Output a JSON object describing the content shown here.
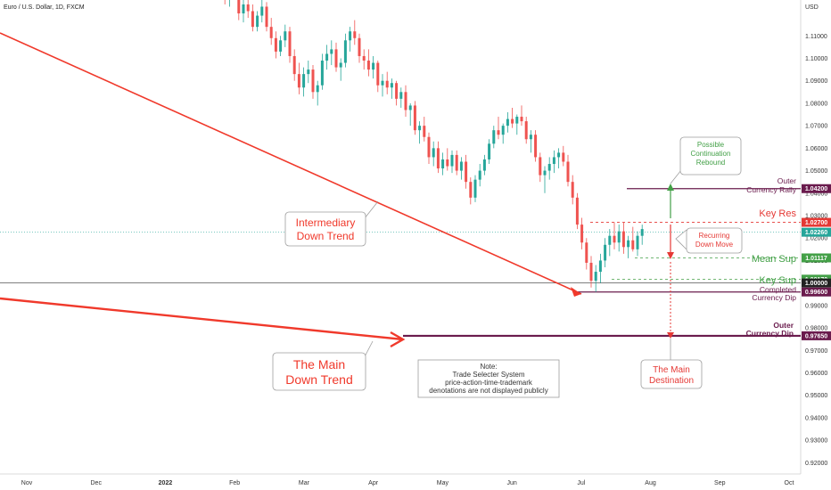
{
  "header": {
    "symbol": "Euro / U.S. Dollar, 1D, FXCM",
    "currency": "USD"
  },
  "chart_data": {
    "type": "candlestick",
    "ylim": [
      0.915,
      1.122
    ],
    "y_ticks": [
      "1.11000",
      "1.10000",
      "1.09000",
      "1.08000",
      "1.07000",
      "1.06000",
      "1.05000",
      "1.04000",
      "1.03000",
      "1.02000",
      "1.01000",
      "1.00000",
      "0.99000",
      "0.98000",
      "0.97000",
      "0.96000",
      "0.95000",
      "0.94000",
      "0.93000",
      "0.92000"
    ],
    "x_labels": [
      "Nov",
      "Dec",
      "2022",
      "Feb",
      "Mar",
      "Apr",
      "May",
      "Jun",
      "Jul",
      "Aug",
      "Sep",
      "Oct"
    ],
    "price_labels": [
      {
        "text": "1.04200",
        "value": 1.042,
        "color": "#6a1b4d"
      },
      {
        "text": "1.02700",
        "value": 1.027,
        "color": "#e53935"
      },
      {
        "text": "1.02260",
        "value": 1.0226,
        "color": "#26a69a"
      },
      {
        "text": "1.01117",
        "value": 1.01117,
        "color": "#43a047"
      },
      {
        "text": "1.00170",
        "value": 1.0017,
        "color": "#43a047"
      },
      {
        "text": "1.00000",
        "value": 1.0,
        "color": "#222222"
      },
      {
        "text": "0.99600",
        "value": 0.996,
        "color": "#6a1b4d"
      },
      {
        "text": "0.97650",
        "value": 0.9765,
        "color": "#6a1b4d"
      }
    ],
    "levels": {
      "outer_rally": {
        "line1": "Outer",
        "line2": "Currency Rally",
        "value": 1.042
      },
      "key_res": {
        "text": "Key Res",
        "value": 1.027
      },
      "mean_sup": {
        "text": "Mean Sup",
        "value": 1.01117
      },
      "key_sup": {
        "text": "Key Sup",
        "value": 1.0017
      },
      "completed": {
        "line1": "Completed",
        "line2": "Currency Dip",
        "value": 0.996
      },
      "outer_dip": {
        "line1": "Outer",
        "line2": "Currency Dip",
        "value": 0.9765
      }
    },
    "callouts": {
      "continuation": [
        "Possible",
        "Continuation",
        "Rebound"
      ],
      "recurring": [
        "Recurring",
        "Down Move"
      ],
      "intermediary": [
        "Intermediary",
        "Down Trend"
      ],
      "main_trend": [
        "The Main",
        "Down Trend"
      ],
      "destination": [
        "The Main",
        "Destination"
      ],
      "note": [
        "Note:",
        "Trade Selecter System",
        "price-action-time-trademark",
        "denotations are not displayed publicly"
      ]
    },
    "candles": [
      [
        1.134,
        1.136,
        1.128,
        1.131
      ],
      [
        1.131,
        1.133,
        1.124,
        1.127
      ],
      [
        1.127,
        1.132,
        1.123,
        1.13
      ],
      [
        1.13,
        1.134,
        1.126,
        1.128
      ],
      [
        1.128,
        1.129,
        1.117,
        1.12
      ],
      [
        1.12,
        1.126,
        1.116,
        1.124
      ],
      [
        1.124,
        1.128,
        1.118,
        1.121
      ],
      [
        1.121,
        1.124,
        1.112,
        1.114
      ],
      [
        1.114,
        1.121,
        1.112,
        1.119
      ],
      [
        1.119,
        1.126,
        1.116,
        1.123
      ],
      [
        1.123,
        1.125,
        1.112,
        1.114
      ],
      [
        1.114,
        1.118,
        1.106,
        1.109
      ],
      [
        1.109,
        1.112,
        1.1,
        1.103
      ],
      [
        1.103,
        1.11,
        1.101,
        1.108
      ],
      [
        1.108,
        1.115,
        1.105,
        1.112
      ],
      [
        1.112,
        1.114,
        1.098,
        1.101
      ],
      [
        1.101,
        1.104,
        1.09,
        1.093
      ],
      [
        1.093,
        1.098,
        1.084,
        1.087
      ],
      [
        1.087,
        1.096,
        1.083,
        1.093
      ],
      [
        1.093,
        1.099,
        1.089,
        1.095
      ],
      [
        1.095,
        1.097,
        1.082,
        1.085
      ],
      [
        1.085,
        1.09,
        1.079,
        1.088
      ],
      [
        1.088,
        1.102,
        1.086,
        1.099
      ],
      [
        1.099,
        1.106,
        1.095,
        1.102
      ],
      [
        1.102,
        1.108,
        1.097,
        1.104
      ],
      [
        1.104,
        1.107,
        1.094,
        1.096
      ],
      [
        1.096,
        1.1,
        1.09,
        1.098
      ],
      [
        1.098,
        1.111,
        1.096,
        1.108
      ],
      [
        1.108,
        1.114,
        1.103,
        1.112
      ],
      [
        1.112,
        1.117,
        1.106,
        1.109
      ],
      [
        1.109,
        1.111,
        1.098,
        1.101
      ],
      [
        1.101,
        1.104,
        1.095,
        1.099
      ],
      [
        1.099,
        1.104,
        1.092,
        1.095
      ],
      [
        1.095,
        1.101,
        1.091,
        1.098
      ],
      [
        1.098,
        1.099,
        1.085,
        1.088
      ],
      [
        1.088,
        1.093,
        1.083,
        1.09
      ],
      [
        1.09,
        1.094,
        1.084,
        1.087
      ],
      [
        1.087,
        1.091,
        1.082,
        1.089
      ],
      [
        1.089,
        1.09,
        1.079,
        1.082
      ],
      [
        1.082,
        1.087,
        1.078,
        1.085
      ],
      [
        1.085,
        1.088,
        1.074,
        1.077
      ],
      [
        1.077,
        1.08,
        1.07,
        1.079
      ],
      [
        1.079,
        1.081,
        1.066,
        1.068
      ],
      [
        1.068,
        1.072,
        1.062,
        1.07
      ],
      [
        1.07,
        1.074,
        1.063,
        1.065
      ],
      [
        1.065,
        1.067,
        1.053,
        1.056
      ],
      [
        1.056,
        1.063,
        1.052,
        1.06
      ],
      [
        1.06,
        1.063,
        1.049,
        1.051
      ],
      [
        1.051,
        1.058,
        1.048,
        1.055
      ],
      [
        1.055,
        1.06,
        1.05,
        1.052
      ],
      [
        1.052,
        1.059,
        1.049,
        1.057
      ],
      [
        1.057,
        1.059,
        1.048,
        1.05
      ],
      [
        1.05,
        1.056,
        1.046,
        1.054
      ],
      [
        1.054,
        1.057,
        1.042,
        1.045
      ],
      [
        1.045,
        1.047,
        1.035,
        1.038
      ],
      [
        1.038,
        1.048,
        1.036,
        1.046
      ],
      [
        1.046,
        1.053,
        1.043,
        1.05
      ],
      [
        1.05,
        1.057,
        1.048,
        1.055
      ],
      [
        1.055,
        1.064,
        1.053,
        1.062
      ],
      [
        1.062,
        1.07,
        1.06,
        1.068
      ],
      [
        1.068,
        1.074,
        1.064,
        1.066
      ],
      [
        1.066,
        1.071,
        1.062,
        1.07
      ],
      [
        1.07,
        1.076,
        1.067,
        1.073
      ],
      [
        1.073,
        1.078,
        1.069,
        1.071
      ],
      [
        1.071,
        1.075,
        1.066,
        1.074
      ],
      [
        1.074,
        1.079,
        1.07,
        1.072
      ],
      [
        1.072,
        1.074,
        1.062,
        1.064
      ],
      [
        1.064,
        1.068,
        1.058,
        1.066
      ],
      [
        1.066,
        1.068,
        1.054,
        1.056
      ],
      [
        1.056,
        1.058,
        1.045,
        1.048
      ],
      [
        1.048,
        1.052,
        1.04,
        1.05
      ],
      [
        1.05,
        1.056,
        1.046,
        1.053
      ],
      [
        1.053,
        1.059,
        1.049,
        1.056
      ],
      [
        1.056,
        1.06,
        1.051,
        1.058
      ],
      [
        1.058,
        1.061,
        1.052,
        1.054
      ],
      [
        1.054,
        1.057,
        1.043,
        1.045
      ],
      [
        1.045,
        1.048,
        1.035,
        1.038
      ],
      [
        1.038,
        1.04,
        1.024,
        1.026
      ],
      [
        1.026,
        1.029,
        1.015,
        1.018
      ],
      [
        1.018,
        1.02,
        1.006,
        1.009
      ],
      [
        1.009,
        1.012,
        0.998,
        1.001
      ],
      [
        1.001,
        1.008,
        0.996,
        1.005
      ],
      [
        1.005,
        1.013,
        1.0,
        1.01
      ],
      [
        1.01,
        1.02,
        1.007,
        1.017
      ],
      [
        1.017,
        1.024,
        1.012,
        1.021
      ],
      [
        1.021,
        1.027,
        1.015,
        1.018
      ],
      [
        1.018,
        1.026,
        1.014,
        1.023
      ],
      [
        1.023,
        1.027,
        1.013,
        1.016
      ],
      [
        1.016,
        1.021,
        1.011,
        1.019
      ],
      [
        1.019,
        1.025,
        1.014,
        1.015
      ],
      [
        1.015,
        1.023,
        1.012,
        1.021
      ],
      [
        1.021,
        1.026,
        1.017,
        1.024
      ]
    ]
  }
}
